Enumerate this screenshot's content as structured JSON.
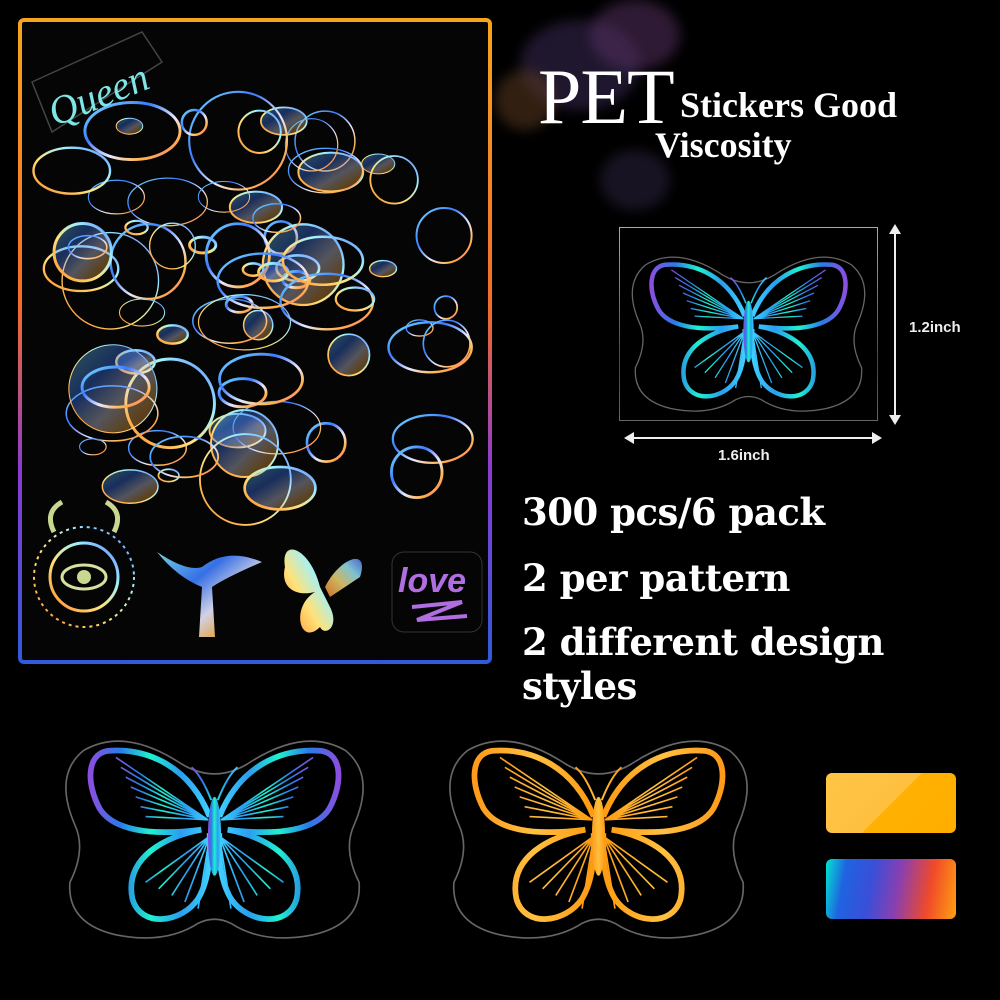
{
  "headline": {
    "big_word": "PET",
    "line1": "Stickers Good",
    "line2": "Viscosity"
  },
  "dimensions": {
    "height_label": "1.2inch",
    "width_label": "1.6inch"
  },
  "features": [
    "300 pcs/6 pack",
    "2 per pattern",
    "2 different design styles"
  ],
  "collage": {
    "sticker_text_queen": "Queen",
    "sticker_text_love": "love"
  },
  "styles": [
    {
      "name": "holographic",
      "color": "#1fd6e0"
    },
    {
      "name": "gold",
      "color": "#ffb000"
    }
  ],
  "colors": {
    "frame_top": "#f7a51c",
    "frame_bottom": "#2f5bdc",
    "swatch_gold": "#ffb400",
    "swatch_rainbow_start": "#00e5d0",
    "swatch_rainbow_end": "#ffa010"
  }
}
